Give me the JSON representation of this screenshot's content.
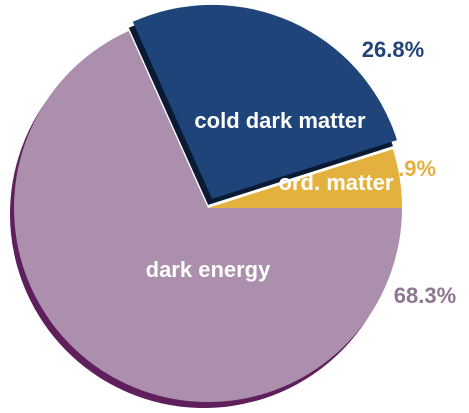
{
  "chart_data": {
    "type": "pie",
    "slices": [
      {
        "label": "dark energy",
        "value": 68.3,
        "value_label": "68.3%",
        "color": "#ab8fac",
        "shadow_color": "#5e1f5c",
        "label_color": "#ffffff",
        "value_color": "#8e7692"
      },
      {
        "label": "cold dark matter",
        "value": 26.8,
        "value_label": "26.8%",
        "color": "#1e4479",
        "shadow_color": "#0b1a33",
        "label_color": "#ffffff",
        "value_color": "#1e4479"
      },
      {
        "label": "ord. matter",
        "value": 4.9,
        "value_label": "4.9%",
        "color": "#e3b13d",
        "shadow_color": "#8a6a1e",
        "label_color": "#ffffff",
        "value_color": "#e3b13d"
      }
    ],
    "exploded_slice": "cold dark matter",
    "legend": "none"
  }
}
